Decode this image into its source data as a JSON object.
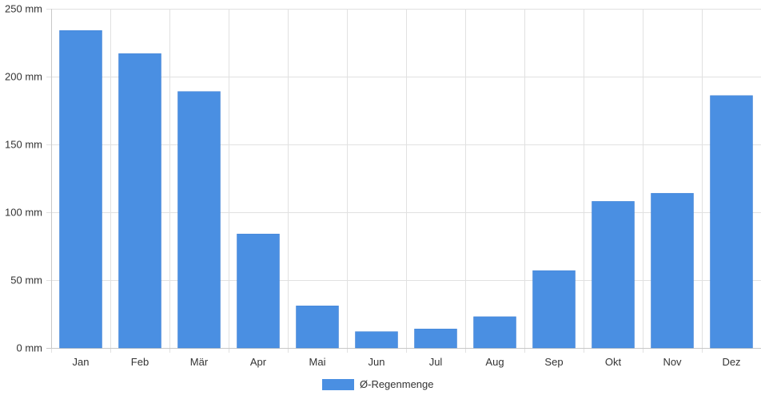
{
  "chart_data": {
    "type": "bar",
    "categories": [
      "Jan",
      "Feb",
      "Mär",
      "Apr",
      "Mai",
      "Jun",
      "Jul",
      "Aug",
      "Sep",
      "Okt",
      "Nov",
      "Dez"
    ],
    "series": [
      {
        "name": "Ø-Regenmenge",
        "values": [
          234,
          217,
          189,
          84,
          31,
          12,
          14,
          23,
          57,
          108,
          114,
          186
        ],
        "color": "#4a8fe2"
      }
    ],
    "ylim": [
      0,
      250
    ],
    "y_ticks": [
      0,
      50,
      100,
      150,
      200,
      250
    ],
    "y_unit": "mm",
    "grid": true,
    "legend": "bottom-center",
    "title": "",
    "xlabel": "",
    "ylabel": ""
  }
}
